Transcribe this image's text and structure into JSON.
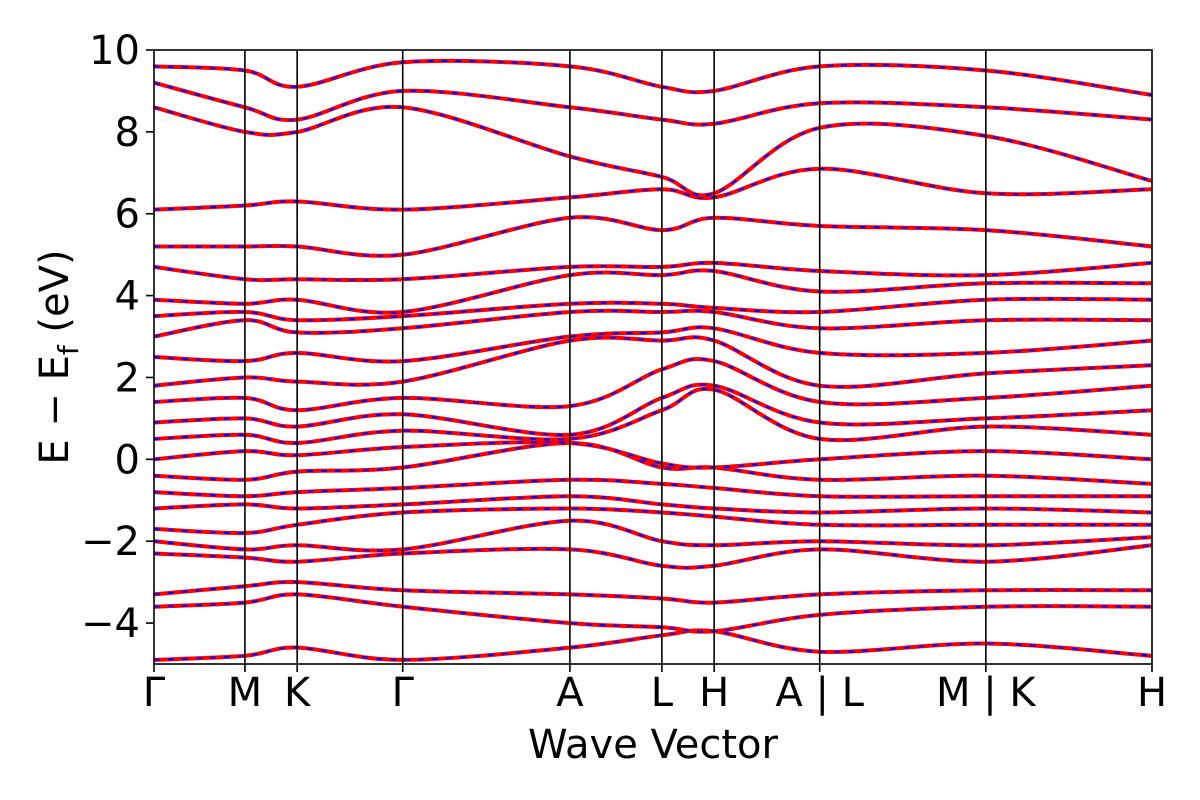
{
  "chart_data": {
    "type": "line",
    "title": "",
    "xlabel": "Wave Vector",
    "ylabel": "E − E",
    "ylabel_sub": "f",
    "ylabel_unit": " (eV)",
    "ylim": [
      -5,
      10
    ],
    "yticks": [
      -4,
      -2,
      0,
      2,
      4,
      6,
      8,
      10
    ],
    "ytick_labels": [
      "−4",
      "−2",
      "0",
      "2",
      "4",
      "6",
      "8",
      "10"
    ],
    "xlim": [
      0,
      9.55
    ],
    "kpoints": [
      {
        "label": "Γ",
        "x": 0.0
      },
      {
        "label": "M",
        "x": 0.87
      },
      {
        "label": "K",
        "x": 1.37
      },
      {
        "label": "Γ",
        "x": 2.38
      },
      {
        "label": "A",
        "x": 3.98
      },
      {
        "label": "L",
        "x": 4.86
      },
      {
        "label": "H",
        "x": 5.36
      },
      {
        "label": "A | L",
        "x": 6.37
      },
      {
        "label": "M | K",
        "x": 7.96
      },
      {
        "label": "H",
        "x": 9.55
      }
    ],
    "segment_breaks": [
      {
        "x": 6.37,
        "left": "A",
        "right": "L"
      },
      {
        "x": 7.96,
        "left": "M",
        "right": "K"
      }
    ],
    "grid": false,
    "legend": "none",
    "series": [
      {
        "style": "solid",
        "color": "#ff0000"
      },
      {
        "style": "dashed",
        "color": "#0000ff"
      }
    ],
    "bands": [
      {
        "x": [
          0,
          0.87,
          1.37,
          2.38,
          3.98,
          4.86,
          5.36,
          6.37,
          7.96,
          9.55
        ],
        "y": [
          -4.9,
          -4.8,
          -4.6,
          -4.9,
          -4.6,
          -4.3,
          -4.2,
          -4.7,
          -4.5,
          -4.8
        ]
      },
      {
        "x": [
          0,
          0.87,
          1.37,
          2.38,
          3.98,
          4.86,
          5.36,
          6.37,
          7.96,
          9.55
        ],
        "y": [
          -3.6,
          -3.5,
          -3.3,
          -3.6,
          -4.0,
          -4.1,
          -4.2,
          -3.8,
          -3.6,
          -3.6
        ]
      },
      {
        "x": [
          0,
          0.87,
          1.37,
          2.38,
          3.98,
          4.86,
          5.36,
          6.37,
          7.96,
          9.55
        ],
        "y": [
          -3.3,
          -3.1,
          -3.0,
          -3.2,
          -3.3,
          -3.4,
          -3.5,
          -3.3,
          -3.2,
          -3.2
        ]
      },
      {
        "x": [
          0,
          0.87,
          1.37,
          2.38,
          3.98,
          4.86,
          5.36,
          6.37,
          7.96,
          9.55
        ],
        "y": [
          -2.3,
          -2.4,
          -2.5,
          -2.3,
          -2.2,
          -2.6,
          -2.6,
          -2.2,
          -2.5,
          -2.1
        ]
      },
      {
        "x": [
          0,
          0.87,
          1.37,
          2.38,
          3.98,
          4.86,
          5.36,
          6.37,
          7.96,
          9.55
        ],
        "y": [
          -2.0,
          -2.2,
          -2.1,
          -2.2,
          -1.5,
          -2.0,
          -2.1,
          -2.0,
          -2.1,
          -1.9
        ]
      },
      {
        "x": [
          0,
          0.87,
          1.37,
          2.38,
          3.98,
          4.86,
          5.36,
          6.37,
          7.96,
          9.55
        ],
        "y": [
          -1.7,
          -1.8,
          -1.6,
          -1.3,
          -1.2,
          -1.3,
          -1.4,
          -1.6,
          -1.6,
          -1.6
        ]
      },
      {
        "x": [
          0,
          0.87,
          1.37,
          2.38,
          3.98,
          4.86,
          5.36,
          6.37,
          7.96,
          9.55
        ],
        "y": [
          -1.2,
          -1.1,
          -1.2,
          -1.1,
          -0.9,
          -1.1,
          -1.2,
          -1.3,
          -1.2,
          -1.3
        ]
      },
      {
        "x": [
          0,
          0.87,
          1.37,
          2.38,
          3.98,
          4.86,
          5.36,
          6.37,
          7.96,
          9.55
        ],
        "y": [
          -0.8,
          -0.9,
          -0.8,
          -0.7,
          -0.5,
          -0.6,
          -0.7,
          -0.9,
          -0.9,
          -0.9
        ]
      },
      {
        "x": [
          0,
          0.87,
          1.37,
          2.38,
          3.98,
          4.86,
          5.36,
          6.37,
          7.96,
          9.55
        ],
        "y": [
          -0.4,
          -0.5,
          -0.3,
          -0.2,
          0.4,
          -0.2,
          -0.2,
          -0.5,
          -0.4,
          -0.6
        ]
      },
      {
        "x": [
          0,
          0.87,
          1.37,
          2.38,
          3.98,
          4.86,
          5.36,
          6.37,
          7.96,
          9.55
        ],
        "y": [
          0.0,
          0.2,
          0.1,
          0.3,
          0.4,
          -0.1,
          -0.2,
          0.0,
          0.2,
          0.0
        ]
      },
      {
        "x": [
          0,
          0.87,
          1.37,
          2.38,
          3.98,
          4.86,
          5.36,
          6.37,
          7.96,
          9.55
        ],
        "y": [
          0.5,
          0.6,
          0.4,
          0.7,
          0.5,
          1.2,
          1.7,
          0.5,
          0.8,
          0.6
        ]
      },
      {
        "x": [
          0,
          0.87,
          1.37,
          2.38,
          3.98,
          4.86,
          5.36,
          6.37,
          7.96,
          9.55
        ],
        "y": [
          0.9,
          1.0,
          0.8,
          1.1,
          0.6,
          1.5,
          1.8,
          0.9,
          1.0,
          1.2
        ]
      },
      {
        "x": [
          0,
          0.87,
          1.37,
          2.38,
          3.98,
          4.86,
          5.36,
          6.37,
          7.96,
          9.55
        ],
        "y": [
          1.4,
          1.5,
          1.2,
          1.5,
          1.3,
          2.2,
          2.4,
          1.4,
          1.5,
          1.8
        ]
      },
      {
        "x": [
          0,
          0.87,
          1.37,
          2.38,
          3.98,
          4.86,
          5.36,
          6.37,
          7.96,
          9.55
        ],
        "y": [
          1.8,
          2.0,
          1.9,
          1.9,
          2.9,
          2.9,
          2.9,
          1.8,
          2.1,
          2.3
        ]
      },
      {
        "x": [
          0,
          0.87,
          1.37,
          2.38,
          3.98,
          4.86,
          5.36,
          6.37,
          7.96,
          9.55
        ],
        "y": [
          2.5,
          2.4,
          2.6,
          2.4,
          3.0,
          3.1,
          3.2,
          2.6,
          2.6,
          2.9
        ]
      },
      {
        "x": [
          0,
          0.87,
          1.37,
          2.38,
          3.98,
          4.86,
          5.36,
          6.37,
          7.96,
          9.55
        ],
        "y": [
          3.0,
          3.4,
          3.1,
          3.2,
          3.6,
          3.6,
          3.6,
          3.2,
          3.4,
          3.4
        ]
      },
      {
        "x": [
          0,
          0.87,
          1.37,
          2.38,
          3.98,
          4.86,
          5.36,
          6.37,
          7.96,
          9.55
        ],
        "y": [
          3.5,
          3.6,
          3.4,
          3.5,
          3.8,
          3.8,
          3.7,
          3.6,
          3.9,
          3.9
        ]
      },
      {
        "x": [
          0,
          0.87,
          1.37,
          2.38,
          3.98,
          4.86,
          5.36,
          6.37,
          7.96,
          9.55
        ],
        "y": [
          3.9,
          3.8,
          3.9,
          3.6,
          4.5,
          4.5,
          4.6,
          4.1,
          4.3,
          4.3
        ]
      },
      {
        "x": [
          0,
          0.87,
          1.37,
          2.38,
          3.98,
          4.86,
          5.36,
          6.37,
          7.96,
          9.55
        ],
        "y": [
          4.7,
          4.4,
          4.4,
          4.4,
          4.7,
          4.7,
          4.8,
          4.6,
          4.5,
          4.8
        ]
      },
      {
        "x": [
          0,
          0.87,
          1.37,
          2.38,
          3.98,
          4.86,
          5.36,
          6.37,
          7.96,
          9.55
        ],
        "y": [
          5.2,
          5.2,
          5.2,
          5.0,
          5.9,
          5.6,
          5.9,
          5.7,
          5.6,
          5.2
        ]
      },
      {
        "x": [
          0,
          0.87,
          1.37,
          2.38,
          3.98,
          4.86,
          5.36,
          6.37,
          7.96,
          9.55
        ],
        "y": [
          6.1,
          6.2,
          6.3,
          6.1,
          6.4,
          6.6,
          6.4,
          7.1,
          6.5,
          6.6
        ]
      },
      {
        "x": [
          0,
          0.87,
          1.37,
          2.38,
          3.98,
          4.86,
          5.36,
          6.37,
          7.96,
          9.55
        ],
        "y": [
          8.6,
          8.0,
          8.0,
          8.6,
          7.4,
          6.9,
          6.5,
          8.1,
          7.9,
          6.8
        ]
      },
      {
        "x": [
          0,
          0.87,
          1.37,
          2.38,
          3.98,
          4.86,
          5.36,
          6.37,
          7.96,
          9.55
        ],
        "y": [
          9.2,
          8.6,
          8.3,
          9.0,
          8.6,
          8.3,
          8.2,
          8.7,
          8.6,
          8.3
        ]
      },
      {
        "x": [
          0,
          0.87,
          1.37,
          2.38,
          3.98,
          4.86,
          5.36,
          6.37,
          7.96,
          9.55
        ],
        "y": [
          9.6,
          9.5,
          9.1,
          9.7,
          9.6,
          9.1,
          9.0,
          9.6,
          9.5,
          8.9
        ]
      }
    ]
  }
}
